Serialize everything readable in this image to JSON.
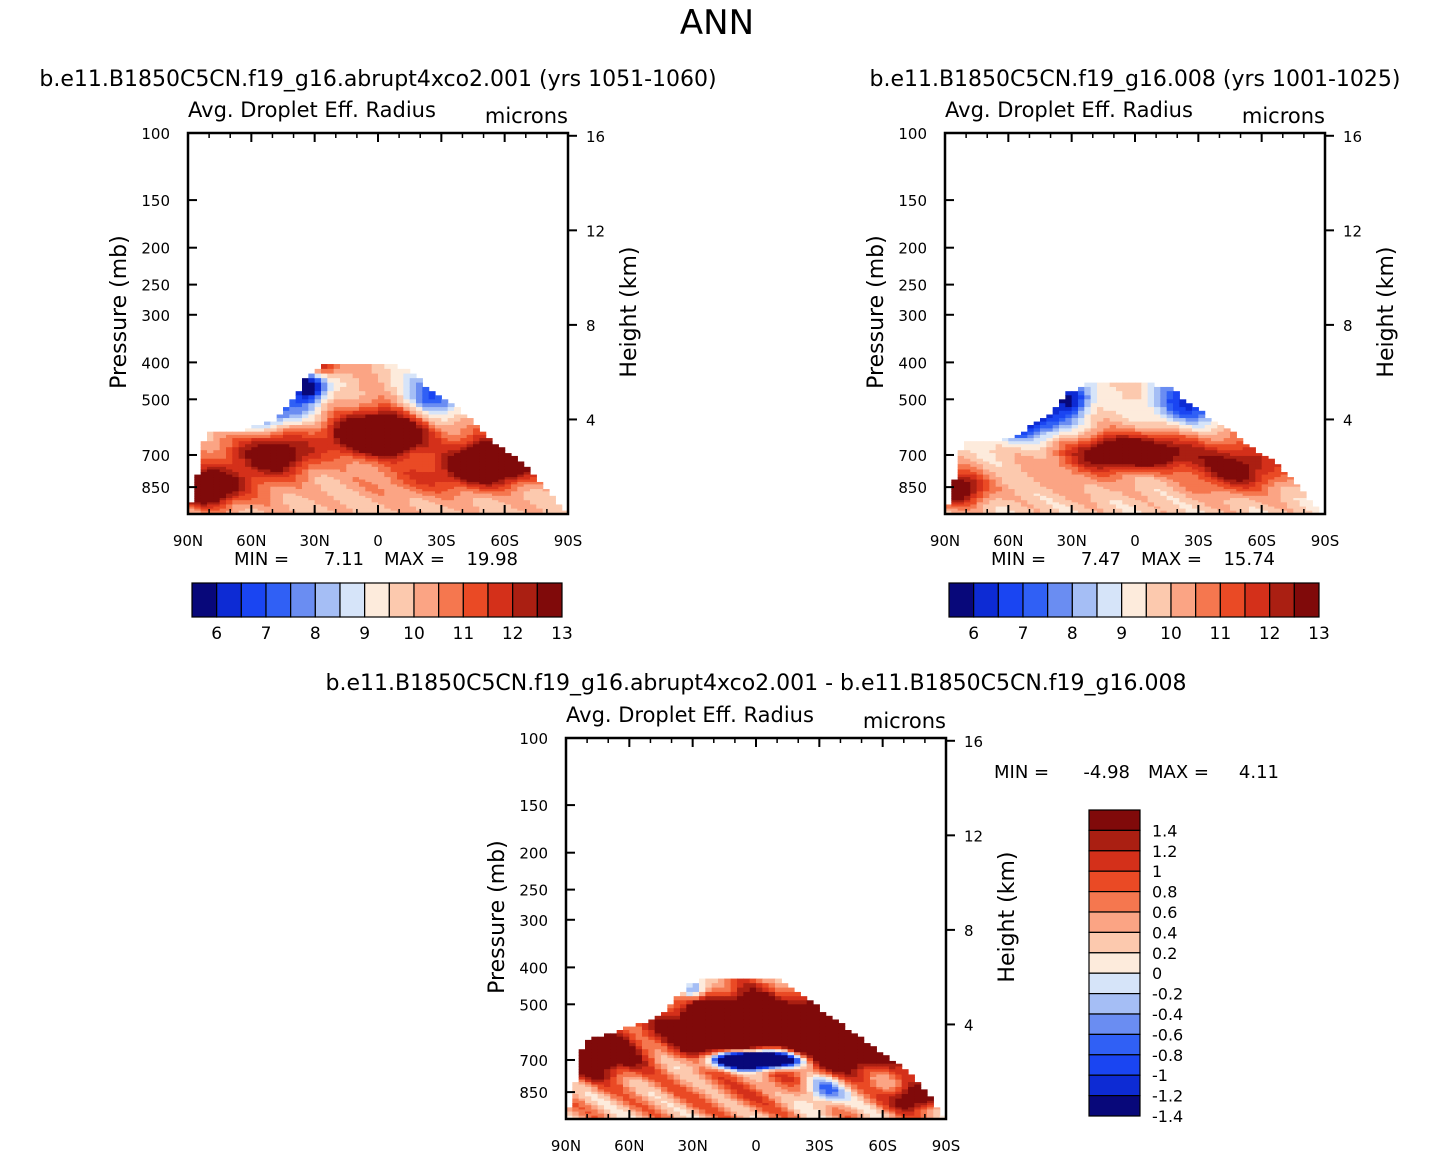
{
  "page_title": "ANN",
  "chart_data": [
    {
      "type": "heatmap",
      "id": "p1",
      "case_title": "b.e11.B1850C5CN.f19_g16.abrupt4xco2.001 (yrs 1051-1060)",
      "title": "Avg. Droplet Eff. Radius",
      "units": "microns",
      "ylabel": "Pressure (mb)",
      "y2label": "Height (km)",
      "x_ticks": [
        "90N",
        "60N",
        "30N",
        "0",
        "30S",
        "60S",
        "90S"
      ],
      "x_range": [
        90,
        -90
      ],
      "y_ticks": [
        "100",
        "150",
        "200",
        "250",
        "300",
        "400",
        "500",
        "700",
        "850"
      ],
      "y2_ticks": [
        "16",
        "12",
        "8",
        "4"
      ],
      "min_label": "MIN =",
      "min_value": "7.11",
      "max_label": "MAX =",
      "max_value": "19.98",
      "colorbar_labels": [
        "6",
        "7",
        "8",
        "9",
        "10",
        "11",
        "12",
        "13"
      ],
      "colors": [
        "#08087a",
        "#0d2bd4",
        "#1a45f2",
        "#3060f5",
        "#6a8df2",
        "#a5bef5",
        "#d6e4f9",
        "#fdebdc",
        "#fcc9ae",
        "#fba484",
        "#f5774f",
        "#ea4a25",
        "#d4301a",
        "#aa1f12",
        "#800a0a"
      ],
      "cloud_top_mb": [
        1000,
        600,
        600,
        600,
        580,
        560,
        500,
        420,
        400,
        400,
        400,
        400,
        400,
        420,
        470,
        500,
        540,
        600,
        660,
        700,
        780,
        880,
        1000
      ],
      "features": [
        {
          "lat": 0,
          "p": 620,
          "sx": 15,
          "sp": 55,
          "v": 7.2
        },
        {
          "lat": 46,
          "p": 700,
          "sx": 12,
          "sp": 60,
          "v": 3.2
        },
        {
          "lat": -55,
          "p": 730,
          "sx": 14,
          "sp": 70,
          "v": 5.8
        },
        {
          "lat": -24,
          "p": 800,
          "sx": 20,
          "sp": 70,
          "v": 1.6
        },
        {
          "lat": 83,
          "p": 860,
          "sx": 10,
          "sp": 60,
          "v": 5.8
        },
        {
          "lat": 62,
          "p": 760,
          "sx": 15,
          "sp": 120,
          "v": 1.6
        },
        {
          "lat": 58,
          "p": 540,
          "sx": 15,
          "sp": 40,
          "v": -4.5
        },
        {
          "lat": 33,
          "p": 460,
          "sx": 6,
          "sp": 35,
          "v": -5.5
        },
        {
          "lat": -28,
          "p": 480,
          "sx": 10,
          "sp": 50,
          "v": -3.5
        },
        {
          "lat": 28,
          "p": 410,
          "sx": 6,
          "sp": 20,
          "v": 3.5
        }
      ],
      "base_value": 10.4
    },
    {
      "type": "heatmap",
      "id": "p2",
      "case_title": "b.e11.B1850C5CN.f19_g16.008 (yrs 1001-1025)",
      "title": "Avg. Droplet Eff. Radius",
      "units": "microns",
      "ylabel": "Pressure (mb)",
      "y2label": "Height (km)",
      "x_ticks": [
        "90N",
        "60N",
        "30N",
        "0",
        "30S",
        "60S",
        "90S"
      ],
      "x_range": [
        90,
        -90
      ],
      "y_ticks": [
        "100",
        "150",
        "200",
        "250",
        "300",
        "400",
        "500",
        "700",
        "850"
      ],
      "y2_ticks": [
        "16",
        "12",
        "8",
        "4"
      ],
      "min_label": "MIN =",
      "min_value": "7.47",
      "max_label": "MAX =",
      "max_value": "15.74",
      "colorbar_labels": [
        "6",
        "7",
        "8",
        "9",
        "10",
        "11",
        "12",
        "13"
      ],
      "colors": [
        "#08087a",
        "#0d2bd4",
        "#1a45f2",
        "#3060f5",
        "#6a8df2",
        "#a5bef5",
        "#d6e4f9",
        "#fdebdc",
        "#fcc9ae",
        "#fba484",
        "#f5774f",
        "#ea4a25",
        "#d4301a",
        "#aa1f12",
        "#800a0a"
      ],
      "cloud_top_mb": [
        1000,
        640,
        640,
        640,
        620,
        580,
        540,
        480,
        450,
        450,
        450,
        450,
        450,
        460,
        500,
        540,
        580,
        620,
        680,
        720,
        800,
        900,
        1000
      ],
      "features": [
        {
          "lat": 0,
          "p": 690,
          "sx": 18,
          "sp": 50,
          "v": 5.4
        },
        {
          "lat": -48,
          "p": 760,
          "sx": 16,
          "sp": 80,
          "v": 3.6
        },
        {
          "lat": 85,
          "p": 860,
          "sx": 10,
          "sp": 60,
          "v": 4.6
        },
        {
          "lat": 25,
          "p": 760,
          "sx": 15,
          "sp": 90,
          "v": 1.0
        },
        {
          "lat": 55,
          "p": 560,
          "sx": 16,
          "sp": 50,
          "v": -5.2
        },
        {
          "lat": 30,
          "p": 490,
          "sx": 6,
          "sp": 35,
          "v": -4.0
        },
        {
          "lat": -25,
          "p": 510,
          "sx": 12,
          "sp": 50,
          "v": -3.5
        },
        {
          "lat": 30,
          "p": 440,
          "sx": 4,
          "sp": 20,
          "v": 2.0
        }
      ],
      "base_value": 10.2
    },
    {
      "type": "heatmap",
      "id": "p3",
      "case_title": "b.e11.B1850C5CN.f19_g16.abrupt4xco2.001 - b.e11.B1850C5CN.f19_g16.008",
      "title": "Avg. Droplet Eff. Radius",
      "units": "microns",
      "ylabel": "Pressure (mb)",
      "y2label": "Height (km)",
      "x_ticks": [
        "90N",
        "60N",
        "30N",
        "0",
        "30S",
        "60S",
        "90S"
      ],
      "x_range": [
        90,
        -90
      ],
      "y_ticks": [
        "100",
        "150",
        "200",
        "250",
        "300",
        "400",
        "500",
        "700",
        "850"
      ],
      "y2_ticks": [
        "16",
        "12",
        "8",
        "4"
      ],
      "min_label": "MIN =",
      "min_value": "-4.98",
      "max_label": "MAX =",
      "max_value": "4.11",
      "colorbar_labels": [
        "1.4",
        "1.2",
        "1",
        "0.8",
        "0.6",
        "0.4",
        "0.2",
        "0",
        "-0.2",
        "-0.4",
        "-0.6",
        "-0.8",
        "-1",
        "-1.2",
        "-1.4"
      ],
      "colors": [
        "#800a0a",
        "#aa1f12",
        "#d4301a",
        "#ea4a25",
        "#f5774f",
        "#fba484",
        "#fcc9ae",
        "#fdebdc",
        "#d6e4f9",
        "#a5bef5",
        "#6a8df2",
        "#3060f5",
        "#1a45f2",
        "#0d2bd4",
        "#08087a"
      ],
      "cloud_top_mb": [
        1000,
        620,
        600,
        580,
        560,
        540,
        500,
        440,
        420,
        420,
        420,
        420,
        420,
        440,
        480,
        520,
        560,
        600,
        650,
        700,
        760,
        860,
        1000
      ],
      "features": [
        {
          "lat": 0,
          "p": 700,
          "sx": 14,
          "sp": 25,
          "v": -5.0
        },
        {
          "lat": 5,
          "p": 560,
          "sx": 25,
          "sp": 60,
          "v": 2.6
        },
        {
          "lat": -40,
          "p": 640,
          "sx": 18,
          "sp": 80,
          "v": 2.4
        },
        {
          "lat": 75,
          "p": 680,
          "sx": 14,
          "sp": 70,
          "v": 1.8
        },
        {
          "lat": -75,
          "p": 880,
          "sx": 8,
          "sp": 50,
          "v": 1.6
        },
        {
          "lat": 20,
          "p": 620,
          "sx": 10,
          "sp": 60,
          "v": 1.4
        },
        {
          "lat": -32,
          "p": 840,
          "sx": 8,
          "sp": 60,
          "v": -1.2
        },
        {
          "lat": 30,
          "p": 460,
          "sx": 4,
          "sp": 20,
          "v": -1.6
        },
        {
          "lat": 0,
          "p": 850,
          "sx": 30,
          "sp": 80,
          "v": 0.3
        }
      ],
      "base_value": 0.35
    }
  ]
}
